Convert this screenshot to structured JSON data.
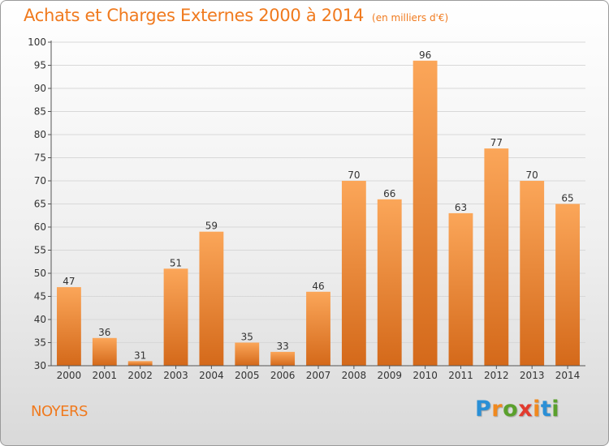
{
  "title": "Achats et Charges Externes 2000 à 2014",
  "unit": "(en milliers d'€)",
  "commune": "NOYERS",
  "logo": {
    "letters": [
      "P",
      "r",
      "o",
      "x",
      "i",
      "t",
      "i"
    ],
    "colors": [
      "#2a8fd6",
      "#f0891e",
      "#5aa02c",
      "#e23a2e",
      "#f0891e",
      "#2a8fd6",
      "#5aa02c"
    ]
  },
  "chart_data": {
    "type": "bar",
    "categories": [
      "2000",
      "2001",
      "2002",
      "2003",
      "2004",
      "2005",
      "2006",
      "2007",
      "2008",
      "2009",
      "2010",
      "2011",
      "2012",
      "2013",
      "2014"
    ],
    "values": [
      47,
      36,
      31,
      51,
      59,
      35,
      33,
      46,
      70,
      66,
      96,
      63,
      77,
      70,
      65
    ],
    "ylim": [
      30,
      100
    ],
    "yticks": [
      30,
      35,
      40,
      45,
      50,
      55,
      60,
      65,
      70,
      75,
      80,
      85,
      90,
      95,
      100
    ],
    "grid": true,
    "colors": {
      "bar_top": "#fba659",
      "bar_bottom": "#d4691a",
      "grid": "#d8d8d8",
      "axis": "#555555",
      "label": "#333333"
    }
  }
}
